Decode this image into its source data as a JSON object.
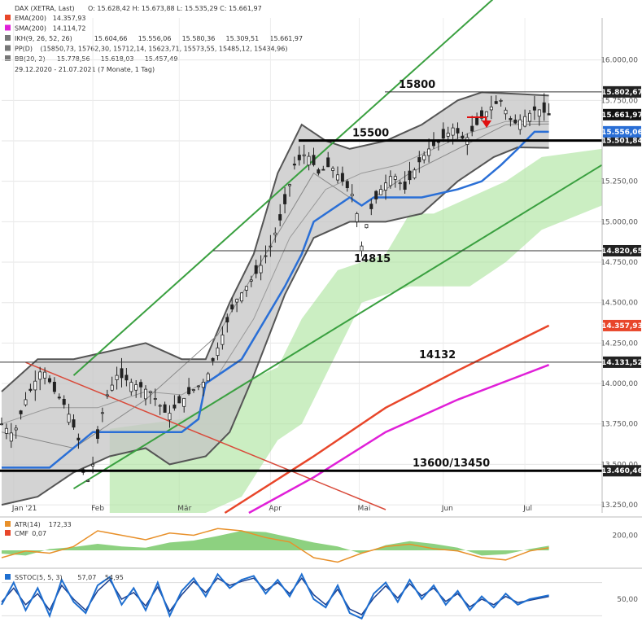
{
  "header": {
    "instrument": "DAX (XETRA, Last)",
    "ohlc": "O: 15.628,42   H: 15.673,88   L: 15.535,29   C: 15.661,97",
    "legend": [
      {
        "label": "EMA(200)",
        "value": "14.357,93",
        "color": "#e8462a"
      },
      {
        "label": "SMA(200)",
        "value": "14.114,72",
        "color": "#e020d8"
      },
      {
        "label": "IKH(9, 26, 52, 26)",
        "values": [
          "15.604,66",
          "15.556,06",
          "15.580,36",
          "15.309,51",
          "15.661,97"
        ],
        "colors": [
          "#777777",
          "#2a6fd6",
          "#555555",
          "#d0407a",
          "#3a9a3a"
        ]
      },
      {
        "label": "PP(D)",
        "value": "(15850,73, 15762,30, 15712,14, 15623,71, 15573,55, 15485,12, 15434,96)",
        "color": "#777777"
      },
      {
        "label": "BB(20, 2)",
        "values": [
          "15.778,56",
          "15.618,03",
          "15.457,49"
        ],
        "color": "#777777"
      }
    ],
    "date_range": "29.12.2020 - 21.07.2021   (7 Monate, 1 Tag)"
  },
  "chart_data": [
    {
      "type": "candlestick",
      "x_ticks": [
        "Jan '21",
        "Feb",
        "Mär",
        "Apr",
        "Mai",
        "Jun",
        "Jul"
      ],
      "y_ticks": [
        "16.000,00",
        "15.750,00",
        "15.500,00",
        "15.250,00",
        "15.000,00",
        "14.750,00",
        "14.500,00",
        "14.250,00",
        "14.000,00",
        "13.750,00",
        "13.500,00",
        "13.250,00"
      ],
      "y_tick_values": [
        16000,
        15750,
        15500,
        15250,
        15000,
        14750,
        14500,
        14250,
        14000,
        13750,
        13500,
        13250
      ],
      "ylim": [
        13200,
        16260
      ],
      "price_path": [
        [
          0,
          13750
        ],
        [
          5,
          13680
        ],
        [
          10,
          13900
        ],
        [
          17,
          14100
        ],
        [
          22,
          13950
        ],
        [
          27,
          13850
        ],
        [
          32,
          13650
        ],
        [
          35,
          13350
        ],
        [
          38,
          13500
        ],
        [
          43,
          13900
        ],
        [
          48,
          14050
        ],
        [
          55,
          14000
        ],
        [
          62,
          13950
        ],
        [
          69,
          13800
        ],
        [
          74,
          13880
        ],
        [
          79,
          13950
        ],
        [
          85,
          14020
        ],
        [
          92,
          14300
        ],
        [
          97,
          14500
        ],
        [
          102,
          14600
        ],
        [
          107,
          14700
        ],
        [
          112,
          14850
        ],
        [
          117,
          15050
        ],
        [
          122,
          15350
        ],
        [
          127,
          15430
        ],
        [
          132,
          15300
        ],
        [
          137,
          15350
        ],
        [
          142,
          15250
        ],
        [
          147,
          15150
        ],
        [
          150,
          14850
        ],
        [
          153,
          15050
        ],
        [
          158,
          15200
        ],
        [
          163,
          15300
        ],
        [
          168,
          15200
        ],
        [
          173,
          15350
        ],
        [
          178,
          15450
        ],
        [
          183,
          15500
        ],
        [
          188,
          15580
        ],
        [
          193,
          15500
        ],
        [
          198,
          15600
        ],
        [
          203,
          15700
        ],
        [
          208,
          15750
        ],
        [
          213,
          15600
        ],
        [
          218,
          15650
        ],
        [
          223,
          15700
        ],
        [
          228,
          15660
        ]
      ],
      "bb_upper": [
        [
          0,
          13950
        ],
        [
          15,
          14150
        ],
        [
          30,
          14150
        ],
        [
          45,
          14200
        ],
        [
          60,
          14250
        ],
        [
          75,
          14150
        ],
        [
          85,
          14150
        ],
        [
          95,
          14500
        ],
        [
          105,
          14800
        ],
        [
          115,
          15300
        ],
        [
          125,
          15600
        ],
        [
          135,
          15500
        ],
        [
          145,
          15450
        ],
        [
          160,
          15500
        ],
        [
          175,
          15600
        ],
        [
          190,
          15750
        ],
        [
          200,
          15800
        ],
        [
          215,
          15790
        ],
        [
          228,
          15780
        ]
      ],
      "bb_middle": [
        [
          0,
          13750
        ],
        [
          20,
          13850
        ],
        [
          40,
          13850
        ],
        [
          60,
          13950
        ],
        [
          75,
          13930
        ],
        [
          90,
          14050
        ],
        [
          105,
          14400
        ],
        [
          120,
          14900
        ],
        [
          135,
          15200
        ],
        [
          150,
          15300
        ],
        [
          165,
          15350
        ],
        [
          180,
          15450
        ],
        [
          195,
          15550
        ],
        [
          210,
          15620
        ],
        [
          228,
          15618
        ]
      ],
      "bb_lower": [
        [
          0,
          13250
        ],
        [
          15,
          13300
        ],
        [
          30,
          13450
        ],
        [
          45,
          13550
        ],
        [
          60,
          13600
        ],
        [
          70,
          13500
        ],
        [
          85,
          13550
        ],
        [
          95,
          13700
        ],
        [
          105,
          14050
        ],
        [
          118,
          14550
        ],
        [
          130,
          14900
        ],
        [
          145,
          15000
        ],
        [
          160,
          15000
        ],
        [
          175,
          15050
        ],
        [
          190,
          15250
        ],
        [
          205,
          15400
        ],
        [
          215,
          15460
        ],
        [
          228,
          15457
        ]
      ],
      "ema200": [
        [
          93,
          13200
        ],
        [
          130,
          13550
        ],
        [
          160,
          13850
        ],
        [
          190,
          14080
        ],
        [
          228,
          14358
        ]
      ],
      "sma200": [
        [
          103,
          13200
        ],
        [
          130,
          13420
        ],
        [
          160,
          13700
        ],
        [
          190,
          13900
        ],
        [
          228,
          14115
        ]
      ],
      "kijun": [
        [
          0,
          13480
        ],
        [
          20,
          13480
        ],
        [
          38,
          13700
        ],
        [
          75,
          13700
        ],
        [
          82,
          13780
        ],
        [
          85,
          14000
        ],
        [
          100,
          14150
        ],
        [
          118,
          14600
        ],
        [
          125,
          14800
        ],
        [
          130,
          15000
        ],
        [
          145,
          15150
        ],
        [
          150,
          15100
        ],
        [
          155,
          15150
        ],
        [
          175,
          15150
        ],
        [
          190,
          15200
        ],
        [
          200,
          15250
        ],
        [
          208,
          15350
        ],
        [
          215,
          15450
        ],
        [
          222,
          15556
        ],
        [
          228,
          15556
        ]
      ],
      "tenkan": [
        [
          0,
          13700
        ],
        [
          30,
          13600
        ],
        [
          60,
          13900
        ],
        [
          90,
          14300
        ],
        [
          110,
          14800
        ],
        [
          130,
          15300
        ],
        [
          150,
          15100
        ],
        [
          170,
          15300
        ],
        [
          190,
          15450
        ],
        [
          210,
          15600
        ],
        [
          228,
          15604
        ]
      ],
      "cloud_top": [
        [
          45,
          13720
        ],
        [
          60,
          13750
        ],
        [
          75,
          13780
        ],
        [
          85,
          13850
        ],
        [
          100,
          14000
        ],
        [
          115,
          14100
        ],
        [
          125,
          14400
        ],
        [
          140,
          14700
        ],
        [
          150,
          14750
        ],
        [
          160,
          14800
        ],
        [
          170,
          15050
        ],
        [
          180,
          15050
        ],
        [
          195,
          15150
        ],
        [
          210,
          15250
        ],
        [
          225,
          15400
        ],
        [
          250,
          15450
        ]
      ],
      "cloud_bottom": [
        [
          45,
          13200
        ],
        [
          60,
          13200
        ],
        [
          75,
          13200
        ],
        [
          85,
          13200
        ],
        [
          100,
          13300
        ],
        [
          115,
          13650
        ],
        [
          125,
          13750
        ],
        [
          140,
          14200
        ],
        [
          150,
          14500
        ],
        [
          160,
          14550
        ],
        [
          170,
          14600
        ],
        [
          180,
          14600
        ],
        [
          195,
          14600
        ],
        [
          210,
          14750
        ],
        [
          225,
          14950
        ],
        [
          250,
          15100
        ]
      ],
      "channel_upper": [
        [
          30,
          14050
        ],
        [
          205,
          16380
        ]
      ],
      "channel_lower": [
        [
          30,
          13350
        ],
        [
          250,
          15350
        ]
      ],
      "downtrend_line": [
        [
          10,
          14130
        ],
        [
          160,
          13220
        ]
      ],
      "horizontal_levels": [
        {
          "label": "15800",
          "value": 15802.67,
          "tag": "15.802,67"
        },
        {
          "label": "15500",
          "value": 15501.84,
          "tag": "15.501,84"
        },
        {
          "label": "14815",
          "value": 14820.65,
          "tag": "14.820,65"
        },
        {
          "label": "14132",
          "value": 14131.52,
          "tag": "14.131,52"
        },
        {
          "label": "13600/13450",
          "value": 13460.46,
          "tag": "13.460,46"
        }
      ],
      "price_tags": [
        {
          "value": 15661.97,
          "text": "15.661,97",
          "color": "#111111"
        },
        {
          "value": 15556.06,
          "text": "15.556,06",
          "color": "#2a6fd6"
        },
        {
          "value": 14357.93,
          "text": "14.357,93",
          "color": "#e8462a"
        }
      ]
    },
    {
      "type": "area",
      "legend": [
        {
          "label": "ATR(14)",
          "value": "172,33",
          "color": "#e8902a"
        },
        {
          "label": "CMF",
          "value": "0,07",
          "color": "#e8462a"
        }
      ],
      "y_ticks": [
        "200,00"
      ],
      "cmf": [
        [
          0,
          -0.05
        ],
        [
          10,
          -0.08
        ],
        [
          20,
          0.02
        ],
        [
          30,
          0.05
        ],
        [
          40,
          0.1
        ],
        [
          50,
          0.06
        ],
        [
          60,
          0.04
        ],
        [
          70,
          0.12
        ],
        [
          80,
          0.15
        ],
        [
          90,
          0.22
        ],
        [
          100,
          0.3
        ],
        [
          110,
          0.28
        ],
        [
          120,
          0.2
        ],
        [
          130,
          0.12
        ],
        [
          140,
          0.06
        ],
        [
          150,
          -0.05
        ],
        [
          160,
          0.08
        ],
        [
          170,
          0.14
        ],
        [
          180,
          0.1
        ],
        [
          190,
          0.04
        ],
        [
          200,
          -0.08
        ],
        [
          210,
          -0.06
        ],
        [
          220,
          0.02
        ],
        [
          228,
          0.07
        ]
      ],
      "atr": [
        [
          0,
          150
        ],
        [
          10,
          165
        ],
        [
          20,
          160
        ],
        [
          30,
          175
        ],
        [
          40,
          210
        ],
        [
          50,
          200
        ],
        [
          60,
          190
        ],
        [
          70,
          205
        ],
        [
          80,
          200
        ],
        [
          90,
          215
        ],
        [
          100,
          210
        ],
        [
          110,
          195
        ],
        [
          120,
          185
        ],
        [
          130,
          150
        ],
        [
          140,
          140
        ],
        [
          150,
          160
        ],
        [
          160,
          175
        ],
        [
          170,
          180
        ],
        [
          180,
          170
        ],
        [
          190,
          165
        ],
        [
          200,
          150
        ],
        [
          210,
          145
        ],
        [
          220,
          165
        ],
        [
          228,
          172
        ]
      ]
    },
    {
      "type": "line",
      "legend": [
        {
          "label": "SSTOC(5, 5, 3)",
          "values": [
            "57,07",
            "54,95"
          ],
          "colors": [
            "#1f6fd0",
            "#1a3f8f"
          ]
        }
      ],
      "y_ticks": [
        "50,00"
      ],
      "k": [
        [
          0,
          40
        ],
        [
          5,
          80
        ],
        [
          10,
          30
        ],
        [
          15,
          70
        ],
        [
          20,
          20
        ],
        [
          25,
          85
        ],
        [
          30,
          45
        ],
        [
          35,
          25
        ],
        [
          40,
          75
        ],
        [
          45,
          90
        ],
        [
          50,
          40
        ],
        [
          55,
          70
        ],
        [
          60,
          30
        ],
        [
          65,
          80
        ],
        [
          70,
          20
        ],
        [
          75,
          65
        ],
        [
          80,
          88
        ],
        [
          85,
          55
        ],
        [
          90,
          95
        ],
        [
          95,
          70
        ],
        [
          100,
          85
        ],
        [
          105,
          92
        ],
        [
          110,
          60
        ],
        [
          115,
          85
        ],
        [
          120,
          55
        ],
        [
          125,
          95
        ],
        [
          130,
          50
        ],
        [
          135,
          35
        ],
        [
          140,
          75
        ],
        [
          145,
          25
        ],
        [
          150,
          15
        ],
        [
          155,
          60
        ],
        [
          160,
          80
        ],
        [
          165,
          45
        ],
        [
          170,
          85
        ],
        [
          175,
          50
        ],
        [
          180,
          75
        ],
        [
          185,
          40
        ],
        [
          190,
          65
        ],
        [
          195,
          30
        ],
        [
          200,
          55
        ],
        [
          205,
          35
        ],
        [
          210,
          60
        ],
        [
          215,
          40
        ],
        [
          220,
          50
        ],
        [
          228,
          57
        ]
      ],
      "d": [
        [
          0,
          45
        ],
        [
          5,
          70
        ],
        [
          10,
          40
        ],
        [
          15,
          60
        ],
        [
          20,
          30
        ],
        [
          25,
          75
        ],
        [
          30,
          50
        ],
        [
          35,
          30
        ],
        [
          40,
          65
        ],
        [
          45,
          85
        ],
        [
          50,
          50
        ],
        [
          55,
          62
        ],
        [
          60,
          38
        ],
        [
          65,
          72
        ],
        [
          70,
          28
        ],
        [
          75,
          58
        ],
        [
          80,
          82
        ],
        [
          85,
          62
        ],
        [
          90,
          88
        ],
        [
          95,
          75
        ],
        [
          100,
          82
        ],
        [
          105,
          88
        ],
        [
          110,
          66
        ],
        [
          115,
          80
        ],
        [
          120,
          60
        ],
        [
          125,
          88
        ],
        [
          130,
          58
        ],
        [
          135,
          40
        ],
        [
          140,
          68
        ],
        [
          145,
          32
        ],
        [
          150,
          22
        ],
        [
          155,
          52
        ],
        [
          160,
          74
        ],
        [
          165,
          52
        ],
        [
          170,
          78
        ],
        [
          175,
          56
        ],
        [
          180,
          70
        ],
        [
          185,
          46
        ],
        [
          190,
          60
        ],
        [
          195,
          36
        ],
        [
          200,
          50
        ],
        [
          205,
          40
        ],
        [
          210,
          55
        ],
        [
          215,
          44
        ],
        [
          220,
          48
        ],
        [
          228,
          55
        ]
      ]
    }
  ]
}
